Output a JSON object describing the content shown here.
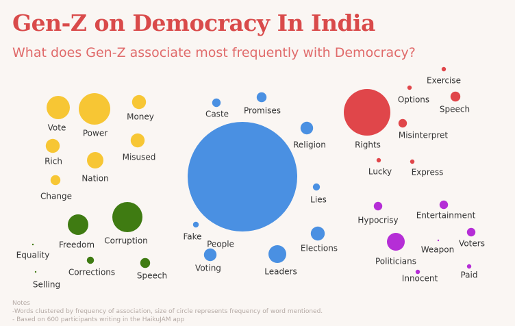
{
  "title": "Gen-Z on Democracy In India",
  "subtitle": "What does Gen-Z associate most frequently with Democracy?",
  "notes": {
    "heading": "Notes",
    "lines": [
      "-Words clustered by frequency of association, size of circle represents frequency of word mentioned.",
      "- Based on 600 participants writing in the HaikuJAM app"
    ]
  },
  "colors": {
    "yellow": "#f7c634",
    "green": "#3f7b12",
    "blue": "#4a90e2",
    "red": "#e0464a",
    "purple": "#b52ed6"
  },
  "chart_data": {
    "type": "bubble",
    "encoding": "circle size = frequency of word mentioned",
    "clusters": [
      {
        "color": "yellow",
        "words": [
          {
            "word": "Vote",
            "size": 17
          },
          {
            "word": "Power",
            "size": 23
          },
          {
            "word": "Money",
            "size": 9
          },
          {
            "word": "Rich",
            "size": 9
          },
          {
            "word": "Misused",
            "size": 9
          },
          {
            "word": "Nation",
            "size": 12
          },
          {
            "word": "Change",
            "size": 6
          }
        ]
      },
      {
        "color": "green",
        "words": [
          {
            "word": "Freedom",
            "size": 15
          },
          {
            "word": "Corruption",
            "size": 22
          },
          {
            "word": "Equality",
            "size": 1
          },
          {
            "word": "Corrections",
            "size": 4
          },
          {
            "word": "Speech",
            "size": 6
          },
          {
            "word": "Selling",
            "size": 1
          }
        ]
      },
      {
        "color": "blue",
        "words": [
          {
            "word": "People",
            "size": 80
          },
          {
            "word": "Caste",
            "size": 5
          },
          {
            "word": "Promises",
            "size": 6
          },
          {
            "word": "Religion",
            "size": 8
          },
          {
            "word": "Lies",
            "size": 4
          },
          {
            "word": "Fake",
            "size": 3
          },
          {
            "word": "Elections",
            "size": 9
          },
          {
            "word": "Voting",
            "size": 8
          },
          {
            "word": "Leaders",
            "size": 13
          }
        ]
      },
      {
        "color": "red",
        "words": [
          {
            "word": "Rights",
            "size": 34
          },
          {
            "word": "Exercise",
            "size": 2
          },
          {
            "word": "Options",
            "size": 2
          },
          {
            "word": "Speech",
            "size": 6
          },
          {
            "word": "Misinterpret",
            "size": 5
          },
          {
            "word": "Lucky",
            "size": 2
          },
          {
            "word": "Express",
            "size": 2
          }
        ]
      },
      {
        "color": "purple",
        "words": [
          {
            "word": "Hypocrisy",
            "size": 5
          },
          {
            "word": "Entertainment",
            "size": 5
          },
          {
            "word": "Politicians",
            "size": 13
          },
          {
            "word": "Weapon",
            "size": 1
          },
          {
            "word": "Voters",
            "size": 5
          },
          {
            "word": "Innocent",
            "size": 2
          },
          {
            "word": "Paid",
            "size": 2
          }
        ]
      }
    ]
  }
}
